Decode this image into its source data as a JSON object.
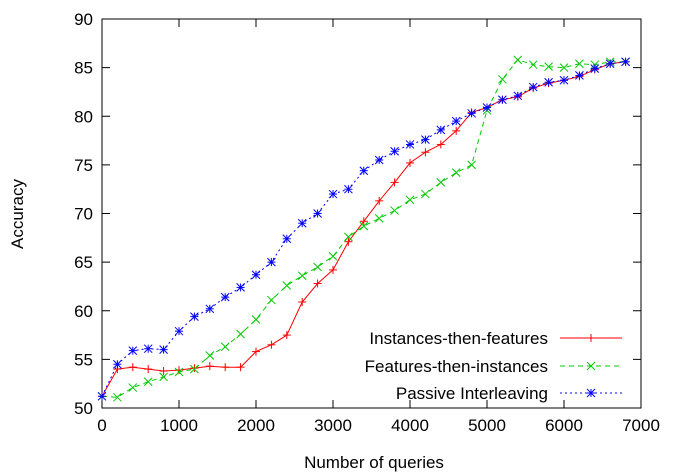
{
  "chart_data": {
    "type": "line",
    "xlabel": "Number of queries",
    "ylabel": "Accuracy",
    "xlim": [
      0,
      7000
    ],
    "ylim": [
      50,
      90
    ],
    "xticks": [
      0,
      1000,
      2000,
      3000,
      4000,
      5000,
      6000,
      7000
    ],
    "yticks": [
      50,
      55,
      60,
      65,
      70,
      75,
      80,
      85,
      90
    ],
    "legend_position": "bottom-right",
    "series": [
      {
        "name": "Instances-then-features",
        "color": "#ff0000",
        "marker": "plus",
        "dash": "solid",
        "x": [
          0,
          200,
          400,
          600,
          800,
          1000,
          1200,
          1400,
          1600,
          1800,
          2000,
          2200,
          2400,
          2600,
          2800,
          3000,
          3200,
          3400,
          3600,
          3800,
          4000,
          4200,
          4400,
          4600,
          4800,
          5000,
          5200,
          5400,
          5600,
          5800,
          6000,
          6200,
          6400,
          6600,
          6800
        ],
        "y": [
          51.2,
          54.0,
          54.2,
          54.0,
          53.8,
          53.9,
          54.1,
          54.3,
          54.2,
          54.2,
          55.8,
          56.5,
          57.5,
          60.9,
          62.8,
          64.2,
          67.1,
          69.2,
          71.3,
          73.2,
          75.2,
          76.3,
          77.1,
          78.5,
          80.4,
          80.9,
          81.7,
          82.0,
          82.9,
          83.4,
          83.7,
          84.1,
          84.8,
          85.4,
          85.6
        ]
      },
      {
        "name": "Features-then-instances",
        "color": "#00cc00",
        "marker": "cross",
        "dash": "5,4",
        "x": [
          0,
          200,
          400,
          600,
          800,
          1000,
          1200,
          1400,
          1600,
          1800,
          2000,
          2200,
          2400,
          2600,
          2800,
          3000,
          3200,
          3400,
          3600,
          3800,
          4000,
          4200,
          4400,
          4600,
          4800,
          5000,
          5200,
          5400,
          5600,
          5800,
          6000,
          6200,
          6400,
          6600,
          6800
        ],
        "y": [
          51.2,
          51.1,
          52.1,
          52.7,
          53.2,
          53.7,
          54.0,
          55.4,
          56.3,
          57.6,
          59.1,
          61.1,
          62.6,
          63.6,
          64.5,
          65.6,
          67.6,
          68.7,
          69.5,
          70.3,
          71.4,
          72.0,
          73.2,
          74.2,
          75.0,
          80.6,
          83.8,
          85.8,
          85.3,
          85.1,
          85.0,
          85.4,
          85.3,
          85.6,
          85.6
        ]
      },
      {
        "name": "Passive Interleaving",
        "color": "#0000ff",
        "marker": "star",
        "dash": "2,3",
        "x": [
          0,
          200,
          400,
          600,
          800,
          1000,
          1200,
          1400,
          1600,
          1800,
          2000,
          2200,
          2400,
          2600,
          2800,
          3000,
          3200,
          3400,
          3600,
          3800,
          4000,
          4200,
          4400,
          4600,
          4800,
          5000,
          5200,
          5400,
          5600,
          5800,
          6000,
          6200,
          6400,
          6600,
          6800
        ],
        "y": [
          51.2,
          54.5,
          55.9,
          56.1,
          56.0,
          57.9,
          59.4,
          60.2,
          61.4,
          62.4,
          63.7,
          65.0,
          67.4,
          69.0,
          70.0,
          72.0,
          72.5,
          74.4,
          75.5,
          76.4,
          77.1,
          77.6,
          78.6,
          79.5,
          80.3,
          80.9,
          81.7,
          82.1,
          83.0,
          83.5,
          83.7,
          84.2,
          84.9,
          85.4,
          85.6
        ]
      }
    ]
  }
}
